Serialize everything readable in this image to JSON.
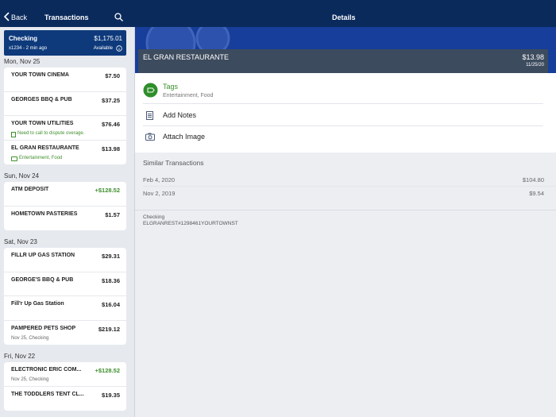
{
  "nav": {
    "back": "Back",
    "title": "Transactions",
    "detail_title": "Details"
  },
  "account": {
    "name": "Checking",
    "balance": "$1,175.01",
    "meta": "x1234 - 2 min ago",
    "available": "Available"
  },
  "groups": [
    {
      "date": "Mon, Nov 25",
      "items": [
        {
          "name": "YOUR TOWN CINEMA",
          "amount": "$7.50"
        },
        {
          "name": "GEORGES BBQ & PUB",
          "amount": "$37.25"
        },
        {
          "name": "YOUR TOWN UTILITIES",
          "amount": "$76.46",
          "note": "Need to call to dispute overage."
        },
        {
          "name": "EL GRAN RESTAURANTE",
          "amount": "$13.98",
          "tags": "Entertainment, Food"
        }
      ]
    },
    {
      "date": "Sun, Nov 24",
      "items": [
        {
          "name": "ATM DEPOSIT",
          "amount": "+$128.52"
        },
        {
          "name": "HOMETOWN PASTERIES",
          "amount": "$1.57"
        }
      ]
    },
    {
      "date": "Sat, Nov 23",
      "items": [
        {
          "name": "FILLR UP GAS STATION",
          "amount": "$29.31"
        },
        {
          "name": "GEORGE'S BBQ & PUB",
          "amount": "$18.36"
        },
        {
          "name": "Fill'r Up Gas Station",
          "amount": "$16.04"
        },
        {
          "name": "PAMPERED PETS SHOP",
          "amount": "$219.12",
          "sub": "Nov 25, Checking"
        }
      ]
    },
    {
      "date": "Fri, Nov 22",
      "items": [
        {
          "name": "ELECTRONIC ERIC COM...",
          "amount": "+$128.52",
          "sub": "Nov 25, Checking"
        },
        {
          "name": "THE TODDLERS TENT CL...",
          "amount": "$19.35"
        }
      ]
    }
  ],
  "detail": {
    "merchant": "EL GRAN RESTAURANTE",
    "amount": "$13.98",
    "date": "11/25/20",
    "tags_label": "Tags",
    "tags": "Entertainment, Food",
    "add_notes": "Add Notes",
    "attach_image": "Attach Image",
    "similar_title": "Similar Transactions",
    "similar": [
      {
        "date": "Feb 4, 2020",
        "amount": "$104.80"
      },
      {
        "date": "Nov 2, 2019",
        "amount": "$9.54"
      }
    ],
    "account": "Checking",
    "description": "ELGRANREST#1298461YOURTOWNST"
  }
}
